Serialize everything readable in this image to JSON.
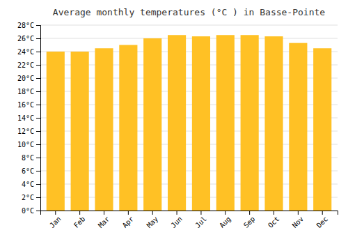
{
  "chart_data": {
    "type": "bar",
    "title": "Average monthly temperatures (°C ) in Basse-Pointe",
    "categories": [
      "Jan",
      "Feb",
      "Mar",
      "Apr",
      "May",
      "Jun",
      "Jul",
      "Aug",
      "Sep",
      "Oct",
      "Nov",
      "Dec"
    ],
    "values": [
      24.0,
      24.0,
      24.5,
      25.0,
      26.0,
      26.5,
      26.3,
      26.5,
      26.5,
      26.3,
      25.3,
      24.5
    ],
    "color": "#FFC125",
    "ylim": [
      0,
      28
    ],
    "yticks": [
      {
        "value": 0,
        "label": "0°C"
      },
      {
        "value": 2,
        "label": "2°C"
      },
      {
        "value": 4,
        "label": "4°C"
      },
      {
        "value": 6,
        "label": "6°C"
      },
      {
        "value": 8,
        "label": "8°C"
      },
      {
        "value": 10,
        "label": "10°C"
      },
      {
        "value": 12,
        "label": "12°C"
      },
      {
        "value": 14,
        "label": "14°C"
      },
      {
        "value": 16,
        "label": "16°C"
      },
      {
        "value": 18,
        "label": "18°C"
      },
      {
        "value": 20,
        "label": "20°C"
      },
      {
        "value": 22,
        "label": "22°C"
      },
      {
        "value": 24,
        "label": "24°C"
      },
      {
        "value": 26,
        "label": "26°C"
      },
      {
        "value": 28,
        "label": "28°C"
      }
    ],
    "grid": true
  }
}
